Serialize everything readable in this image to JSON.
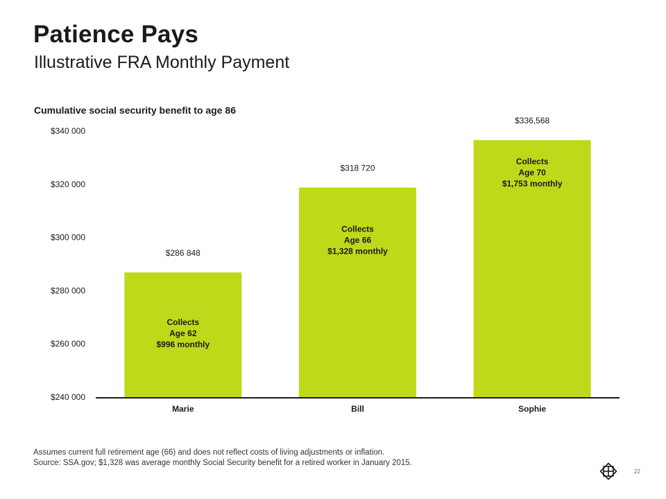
{
  "header": {
    "title": "Patience Pays",
    "subtitle": "Illustrative FRA Monthly Payment"
  },
  "chart_data": {
    "type": "bar",
    "title": "Cumulative social security benefit to age 86",
    "xlabel": "",
    "ylabel": "",
    "categories": [
      "Marie",
      "Bill",
      "Sophie"
    ],
    "values": [
      286848,
      318720,
      336568
    ],
    "value_labels": [
      "$286 848",
      "$318 720",
      "$336,568"
    ],
    "bar_annotations": [
      [
        "Collects",
        "Age 62",
        "$996 monthly"
      ],
      [
        "Collects",
        "Age 66",
        "$1,328 monthly"
      ],
      [
        "Collects",
        "Age 70",
        "$1,753 monthly"
      ]
    ],
    "ylim": [
      240000,
      340000
    ],
    "yticks": [
      240000,
      260000,
      280000,
      300000,
      320000,
      340000
    ],
    "ytick_labels": [
      "$240 000",
      "$260 000",
      "$280 000",
      "$300 000",
      "$320 000",
      "$340 000"
    ],
    "grid": false,
    "bar_color": "#bfd91a"
  },
  "footnote": {
    "line1": "Assumes current full retirement age (66) and does not reflect costs of living adjustments or inflation.",
    "line2": "Source: SSA.gov; $1,328 was average monthly Social Security benefit for a retired worker in January 2015."
  },
  "page": {
    "number": "22"
  },
  "logo": {
    "icon": "company-logo-icon"
  }
}
